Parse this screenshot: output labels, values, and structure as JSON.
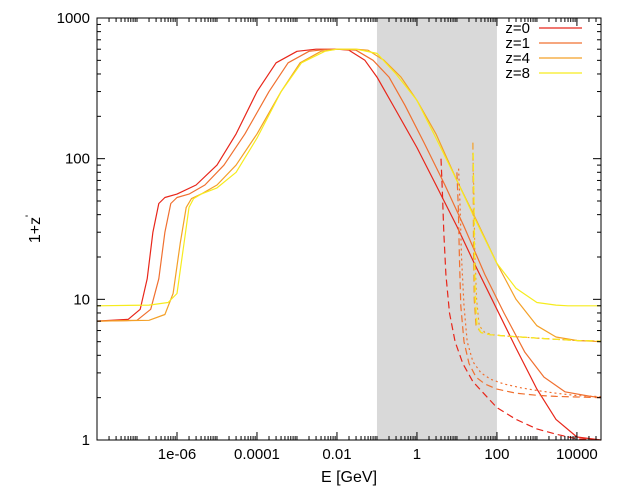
{
  "chart_data": {
    "type": "line",
    "title": "",
    "xlabel": "E [GeV]",
    "ylabel": "1+z",
    "ylabel_superscript": "'",
    "xscale": "log",
    "yscale": "log",
    "xlim": [
      1e-08,
      40000
    ],
    "ylim": [
      1,
      1000
    ],
    "xticks": [
      {
        "value": 1e-06,
        "label": "1e-06"
      },
      {
        "value": 0.0001,
        "label": "0.0001"
      },
      {
        "value": 0.01,
        "label": "0.01"
      },
      {
        "value": 1,
        "label": "1"
      },
      {
        "value": 100,
        "label": "100"
      },
      {
        "value": 10000,
        "label": "10000"
      }
    ],
    "yticks": [
      {
        "value": 1,
        "label": "1"
      },
      {
        "value": 10,
        "label": "10"
      },
      {
        "value": 100,
        "label": "100"
      },
      {
        "value": 1000,
        "label": "1000"
      }
    ],
    "shaded_band": {
      "x_from": 0.1,
      "x_to": 100,
      "color": "#d9d9d9"
    },
    "grid": false,
    "legend_position": "top-right",
    "series": [
      {
        "name": "z=0",
        "color": "#e8261a",
        "style": "solid",
        "x": [
          1e-08,
          6e-08,
          1.2e-07,
          1.8e-07,
          2.5e-07,
          3.5e-07,
          5e-07,
          1e-06,
          3e-06,
          1e-05,
          3e-05,
          0.0001,
          0.0003,
          0.001,
          0.003,
          0.01,
          0.02,
          0.05,
          0.1,
          0.3,
          1,
          3,
          10,
          30,
          100,
          300,
          1000,
          3000,
          10000,
          40000
        ],
        "y": [
          7,
          7.2,
          8.5,
          14,
          30,
          48,
          53,
          56,
          65,
          90,
          150,
          300,
          480,
          580,
          600,
          600,
          590,
          500,
          380,
          220,
          120,
          65,
          33,
          17,
          8.5,
          4.5,
          2.3,
          1.4,
          1.05,
          1.0
        ]
      },
      {
        "name": "z=1",
        "color": "#f07030",
        "style": "solid",
        "x": [
          1e-08,
          1e-07,
          2.2e-07,
          3.5e-07,
          5e-07,
          7e-07,
          1e-06,
          2e-06,
          5e-06,
          1.5e-05,
          5e-05,
          0.0002,
          0.0006,
          0.002,
          0.006,
          0.01,
          0.03,
          0.08,
          0.2,
          0.5,
          1.5,
          5,
          15,
          50,
          150,
          500,
          1500,
          5000,
          20000,
          40000
        ],
        "y": [
          7,
          7.1,
          8.5,
          14,
          30,
          48,
          53,
          56,
          65,
          90,
          150,
          300,
          480,
          580,
          600,
          600,
          590,
          500,
          380,
          240,
          130,
          65,
          33,
          15,
          8,
          4.2,
          2.8,
          2.2,
          2.05,
          2.0
        ]
      },
      {
        "name": "z=4",
        "color": "#f4a028",
        "style": "solid",
        "x": [
          1e-08,
          2e-07,
          5e-07,
          8e-07,
          1.2e-06,
          1.7e-06,
          2.3e-06,
          4e-06,
          1e-05,
          3e-05,
          0.0001,
          0.0004,
          0.0012,
          0.004,
          0.01,
          0.03,
          0.06,
          0.15,
          0.4,
          1,
          3,
          10,
          30,
          100,
          300,
          1000,
          3000,
          10000,
          40000
        ],
        "y": [
          7,
          7.1,
          7.8,
          11,
          25,
          45,
          52,
          56,
          65,
          90,
          150,
          300,
          480,
          580,
          600,
          600,
          590,
          500,
          380,
          260,
          150,
          70,
          37,
          18,
          10,
          6.5,
          5.4,
          5.1,
          5.0
        ]
      },
      {
        "name": "z=8",
        "color": "#f6ec1e",
        "style": "solid",
        "x": [
          1e-08,
          2e-07,
          6e-07,
          1e-06,
          1.5e-06,
          2e-06,
          2.6e-06,
          4e-06,
          1e-05,
          3e-05,
          0.0001,
          0.0004,
          0.0013,
          0.005,
          0.01,
          0.03,
          0.1,
          0.3,
          1,
          3,
          10,
          30,
          100,
          300,
          1000,
          3000,
          6000,
          10000,
          40000
        ],
        "y": [
          9,
          9.1,
          9.5,
          11,
          25,
          45,
          52,
          56,
          62,
          80,
          140,
          300,
          480,
          580,
          600,
          600,
          560,
          400,
          260,
          140,
          70,
          36,
          18,
          12,
          9.5,
          9.1,
          9.0,
          9.0,
          9.0
        ]
      },
      {
        "name": "",
        "color": "#e8261a",
        "style": "dashed",
        "x": [
          4,
          4.3,
          4.7,
          5.3,
          6.5,
          9,
          14,
          25,
          50,
          100,
          300,
          1000,
          3000,
          10000,
          40000
        ],
        "y": [
          100,
          60,
          30,
          15,
          8,
          5,
          3.5,
          2.6,
          2.1,
          1.7,
          1.4,
          1.2,
          1.1,
          1.02,
          1.0
        ]
      },
      {
        "name": "",
        "color": "#f07030",
        "style": "dashed",
        "x": [
          10,
          10.8,
          11.5,
          12.5,
          15,
          20,
          30,
          50,
          100,
          300,
          1000,
          3000,
          10000,
          40000
        ],
        "y": [
          80,
          45,
          20,
          9,
          5,
          3.5,
          2.8,
          2.5,
          2.3,
          2.15,
          2.08,
          2.04,
          2.02,
          2.0
        ]
      },
      {
        "name": "",
        "color": "#f07030",
        "style": "dotted",
        "x": [
          11,
          12,
          13,
          15,
          18,
          25,
          40,
          70,
          150,
          400,
          1000,
          3000,
          10000,
          40000
        ],
        "y": [
          85,
          45,
          20,
          9,
          5,
          3.6,
          3.0,
          2.7,
          2.5,
          2.35,
          2.25,
          2.15,
          2.07,
          2.03
        ]
      },
      {
        "name": "",
        "color": "#f4a028",
        "style": "dashed",
        "x": [
          25,
          25.5,
          26,
          27,
          30,
          40,
          70,
          150,
          400,
          1000,
          3000,
          10000,
          40000
        ],
        "y": [
          130,
          60,
          25,
          10,
          6.5,
          5.8,
          5.6,
          5.5,
          5.4,
          5.3,
          5.2,
          5.1,
          5.05
        ]
      },
      {
        "name": "",
        "color": "#f4a028",
        "style": "dotted",
        "x": [
          25,
          26.5,
          28,
          31,
          36,
          50,
          80,
          150,
          400,
          1000,
          3000,
          10000,
          40000
        ],
        "y": [
          110,
          55,
          22,
          10,
          6.5,
          5.8,
          5.6,
          5.5,
          5.4,
          5.3,
          5.2,
          5.1,
          5.05
        ]
      },
      {
        "name": "",
        "color": "#f6ec1e",
        "style": "dashed",
        "x": [
          25.5,
          26.5,
          27.5,
          29,
          32,
          40,
          70,
          150,
          400,
          1000,
          3000,
          10000,
          40000
        ],
        "y": [
          110,
          55,
          22,
          10,
          6.5,
          5.8,
          5.6,
          5.5,
          5.4,
          5.3,
          5.2,
          5.1,
          5.05
        ]
      }
    ]
  }
}
